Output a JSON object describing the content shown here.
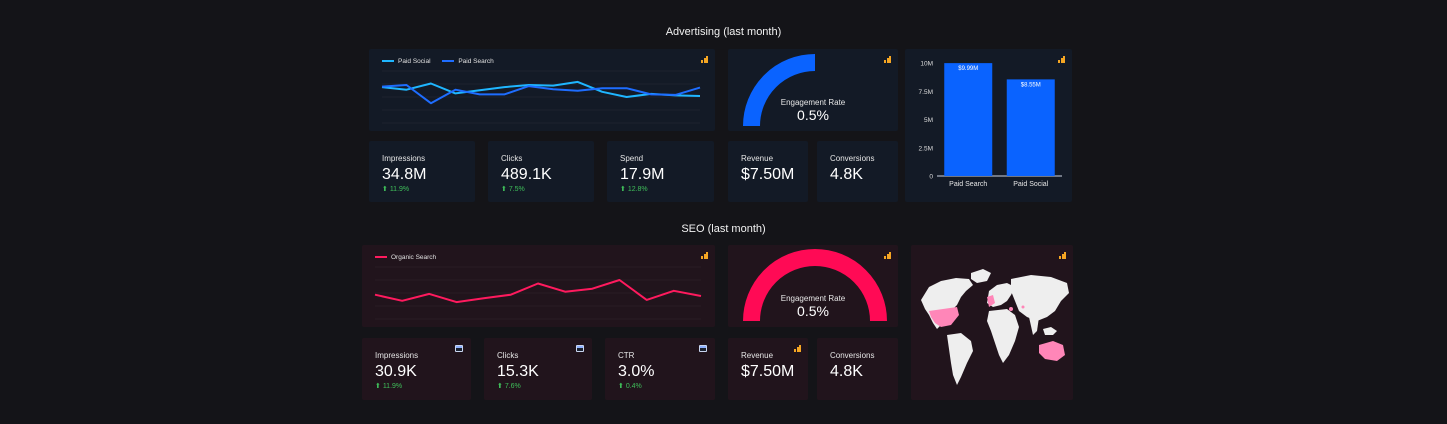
{
  "advertising": {
    "title": "Advertising (last month)",
    "legend": [
      {
        "label": "Paid Social",
        "color": "#1fb6ff"
      },
      {
        "label": "Paid Search",
        "color": "#1e6dff"
      }
    ],
    "gauge": {
      "label": "Engagement Rate",
      "value": "0.5%",
      "color": "#0a63ff",
      "fraction": 0.5
    },
    "kpis": [
      {
        "label": "Impressions",
        "value": "34.8M",
        "delta": "11.9%"
      },
      {
        "label": "Clicks",
        "value": "489.1K",
        "delta": "7.5%"
      },
      {
        "label": "Spend",
        "value": "17.9M",
        "delta": "12.8%"
      },
      {
        "label": "Revenue",
        "value": "$7.50M"
      },
      {
        "label": "Conversions",
        "value": "4.8K"
      }
    ]
  },
  "seo": {
    "title": "SEO (last month)",
    "legend": [
      {
        "label": "Organic Search",
        "color": "#ff1a5e"
      }
    ],
    "gauge": {
      "label": "Engagement Rate",
      "value": "0.5%",
      "color": "#ff0a55",
      "fraction": 1.0
    },
    "kpis": [
      {
        "label": "Impressions",
        "value": "30.9K",
        "delta": "11.9%"
      },
      {
        "label": "Clicks",
        "value": "15.3K",
        "delta": "7.6%"
      },
      {
        "label": "CTR",
        "value": "3.0%",
        "delta": "0.4%"
      },
      {
        "label": "Revenue",
        "value": "$7.50M"
      },
      {
        "label": "Conversions",
        "value": "4.8K"
      }
    ]
  },
  "icons": {
    "badge": "bar-chart-icon",
    "calendar": "calendar-icon",
    "delta": "arrow-up-icon"
  },
  "chart_data": [
    {
      "type": "line",
      "series": [
        {
          "name": "Paid Social",
          "color": "#1fb6ff",
          "values": [
            6.9,
            6.4,
            7.6,
            5.7,
            6.3,
            6.9,
            7.3,
            7.2,
            7.9,
            6.0,
            5.0,
            5.6,
            5.3,
            5.2
          ]
        },
        {
          "name": "Paid Search",
          "color": "#1e6dff",
          "values": [
            7.0,
            7.3,
            3.8,
            6.4,
            5.5,
            5.5,
            7.1,
            6.5,
            6.2,
            6.7,
            6.7,
            5.5,
            5.4,
            6.8
          ]
        }
      ],
      "ylim": [
        0,
        10
      ]
    },
    {
      "type": "bar",
      "categories": [
        "Paid Search",
        "Paid Social"
      ],
      "values": [
        9.99,
        8.55
      ],
      "data_labels": [
        "$9.99M",
        "$8.55M"
      ],
      "yticks": [
        "0",
        "2.5M",
        "5M",
        "7.5M",
        "10M"
      ],
      "ylim": [
        0,
        10
      ],
      "color": "#0a63ff"
    },
    {
      "type": "line",
      "series": [
        {
          "name": "Organic Search",
          "color": "#ff1a5e",
          "values": [
            5.6,
            4.2,
            5.8,
            3.9,
            4.8,
            5.6,
            8.2,
            6.3,
            7.0,
            9.0,
            4.4,
            6.5,
            5.3
          ]
        }
      ],
      "ylim": [
        0,
        12
      ]
    }
  ]
}
